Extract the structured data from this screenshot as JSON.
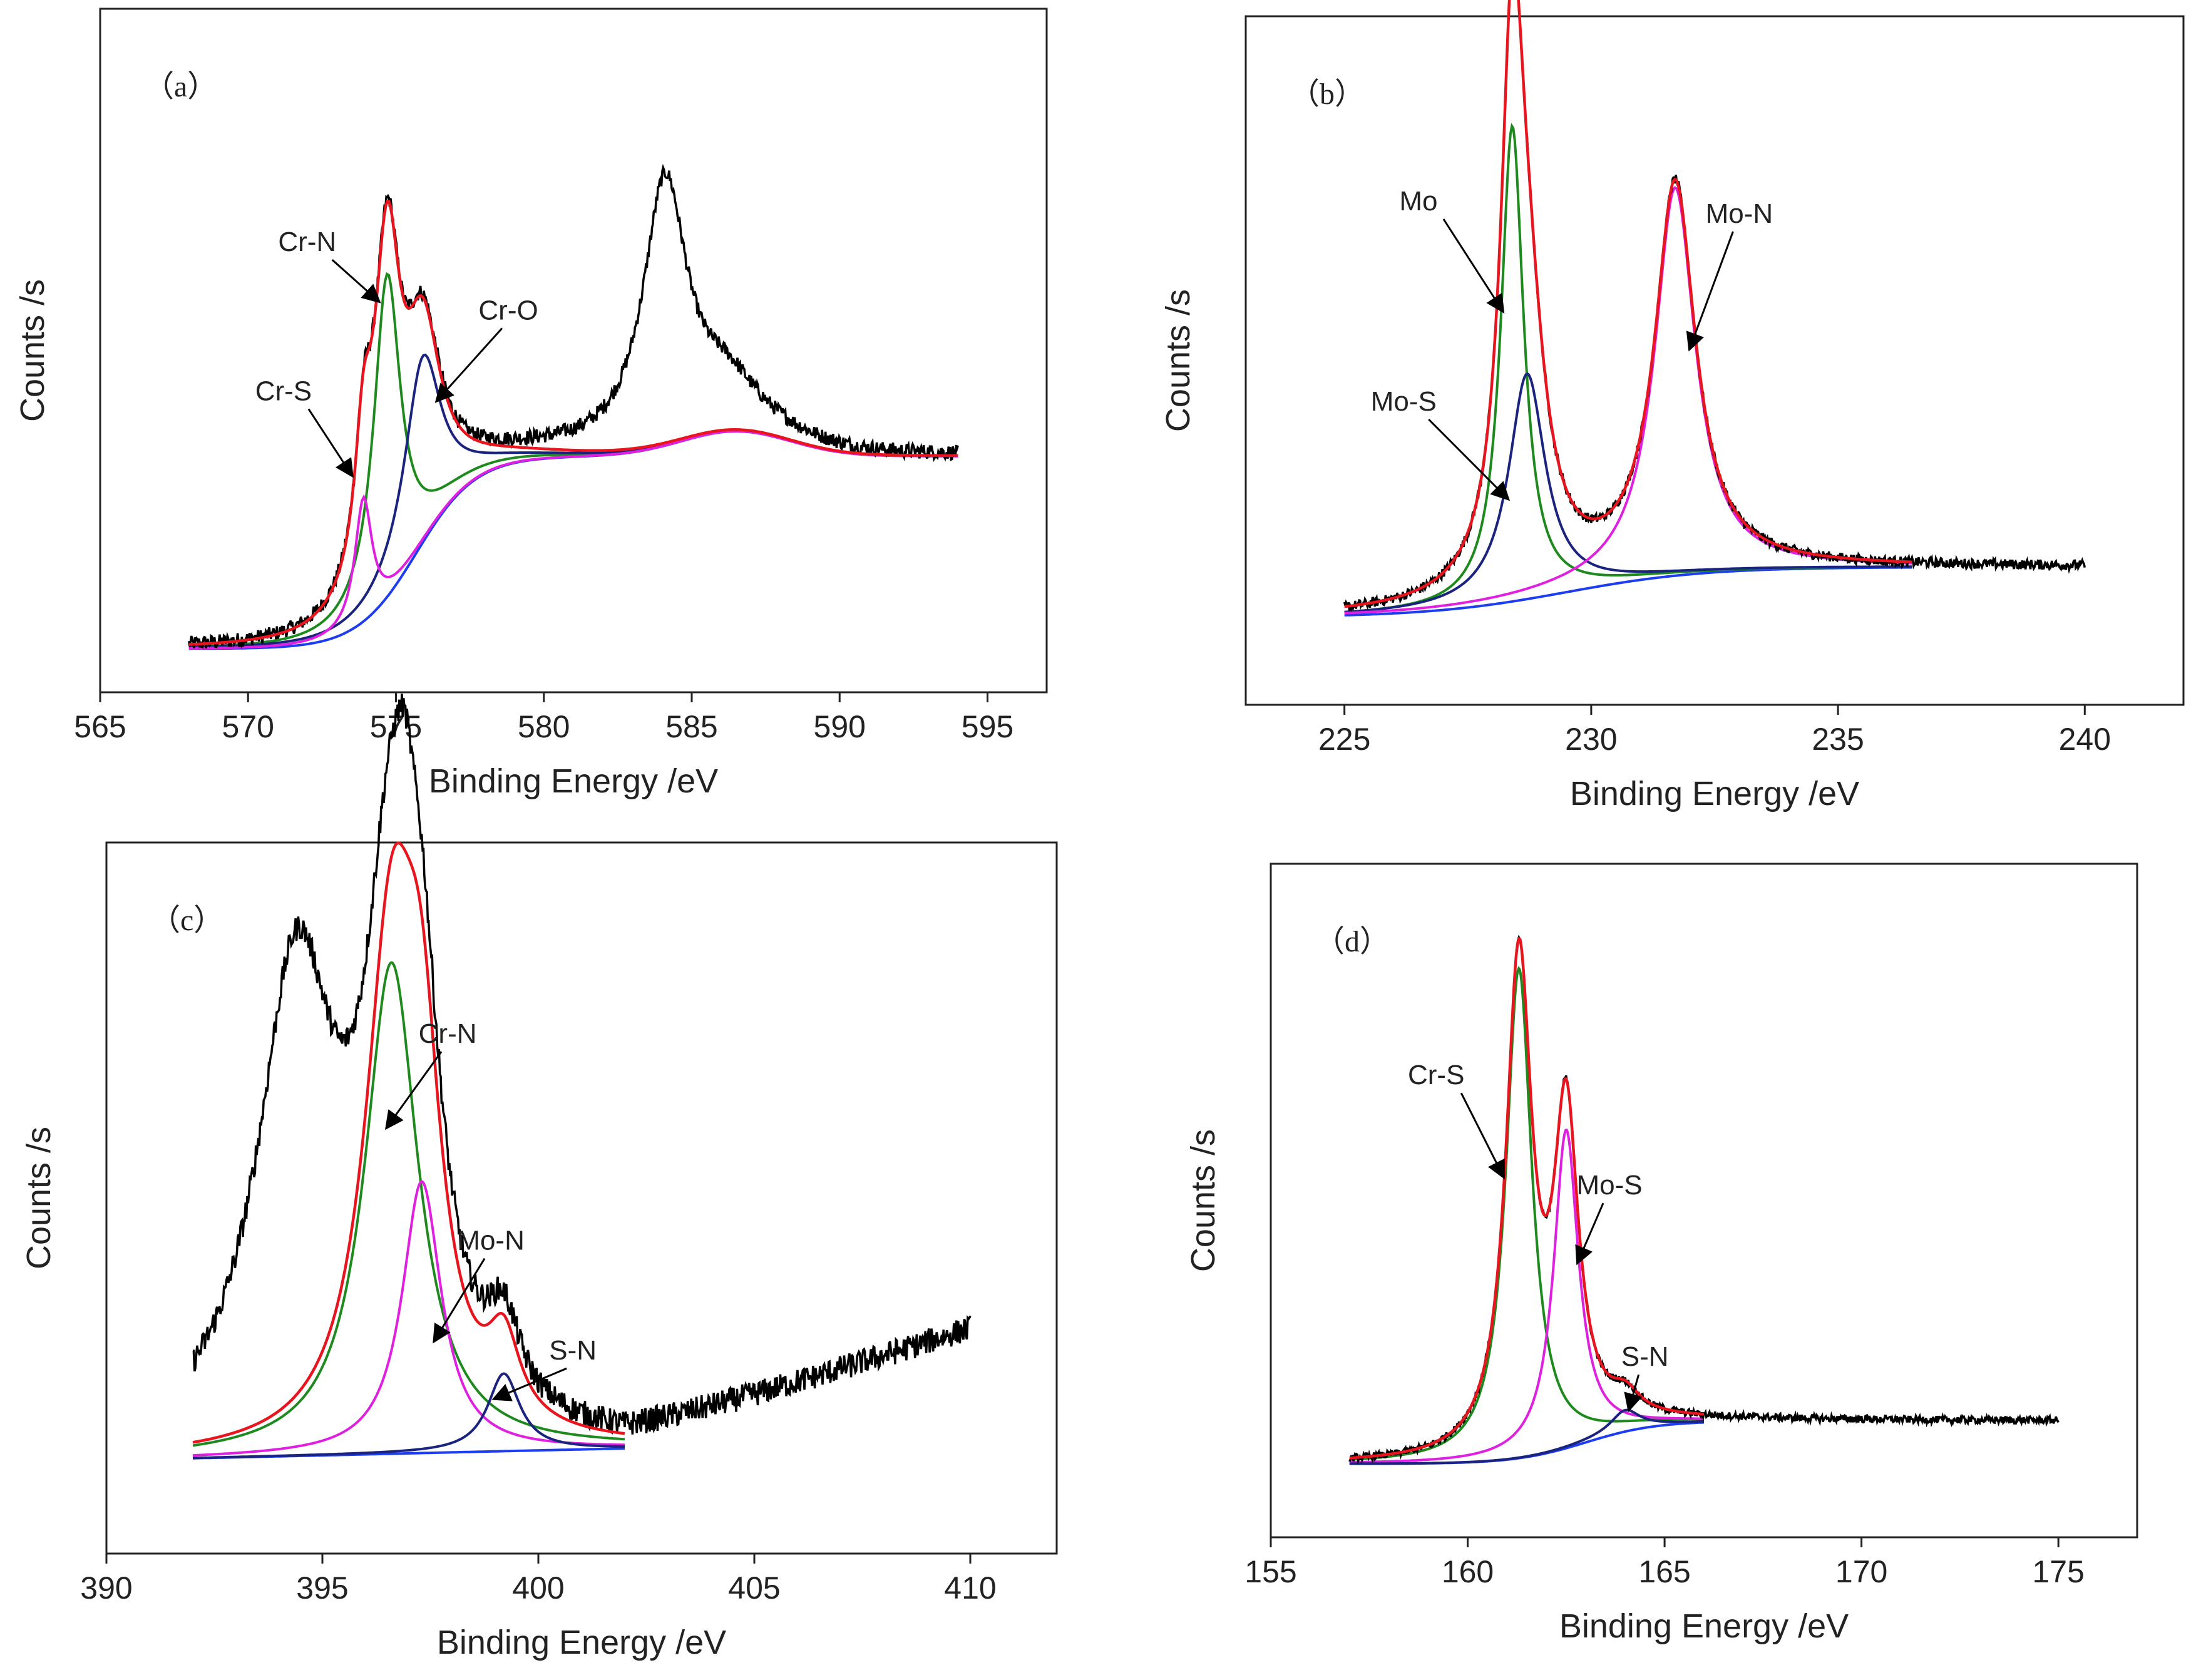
{
  "chart_data": [
    {
      "type": "line",
      "panel_label": "（a）",
      "xlabel": "Binding Energy /eV",
      "ylabel": "Counts /s",
      "xlim": [
        565,
        597
      ],
      "ylim": [
        0,
        1.1
      ],
      "xticks": [
        565,
        570,
        575,
        580,
        585,
        590,
        595
      ],
      "grid": false,
      "x_range": [
        568,
        594
      ],
      "noise": 0.012,
      "background": {
        "start": 568,
        "lo": 0.07,
        "mid": 0.38,
        "center": 575.7,
        "width": 1.0,
        "bump_height": 0.04,
        "bump_center": 586.5,
        "bump_width": 2.6,
        "tail_center": 582.5,
        "tail_width": 1.2,
        "tail_end": 0.45
      },
      "components": [
        {
          "name": "Cr-N",
          "color": "#1e8a1e",
          "center": 574.7,
          "height": 0.52,
          "width": 0.55
        },
        {
          "name": "Cr-O",
          "color": "#1a237e",
          "center": 575.9,
          "height": 0.3,
          "width": 0.75
        },
        {
          "name": "Cr-S",
          "color": "#e020e0",
          "center": 573.9,
          "height": 0.2,
          "width": 0.35
        }
      ],
      "experimental_extra": [
        {
          "center": 584.1,
          "height": 0.42,
          "width": 0.9
        },
        {
          "center": 586.2,
          "height": 0.06,
          "width": 1.2
        }
      ],
      "fit_range": [
        568,
        594
      ],
      "annotations": [
        {
          "text": "Cr-N",
          "label_x": 572.0,
          "label_y": 0.71,
          "arrow_to_x": 574.4,
          "arrow_to_y": 0.63
        },
        {
          "text": "Cr-O",
          "label_x": 578.8,
          "label_y": 0.6,
          "arrow_to_x": 576.4,
          "arrow_to_y": 0.47
        },
        {
          "text": "Cr-S",
          "label_x": 571.2,
          "label_y": 0.47,
          "arrow_to_x": 573.5,
          "arrow_to_y": 0.35
        }
      ]
    },
    {
      "type": "line",
      "panel_label": "（b）",
      "xlabel": "Binding Energy /eV",
      "ylabel": "Counts /s",
      "xlim": [
        223,
        242
      ],
      "ylim": [
        0,
        1.1
      ],
      "xticks": [
        225,
        230,
        235,
        240
      ],
      "grid": false,
      "x_range": [
        225,
        240
      ],
      "noise": 0.008,
      "background": {
        "start": 225,
        "lo": 0.14,
        "mid": 0.22,
        "center": 229.5,
        "width": 1.4,
        "bump_height": 0.0,
        "bump_center": 235,
        "bump_width": 2,
        "tail_center": 236.6,
        "tail_width": 0.3,
        "tail_end": 0.22
      },
      "components": [
        {
          "name": "Mo",
          "color": "#1e8a1e",
          "center": 228.4,
          "height": 0.76,
          "width": 0.28
        },
        {
          "name": "Mo-S",
          "color": "#1a237e",
          "center": 228.7,
          "height": 0.36,
          "width": 0.45
        },
        {
          "name": "Mo-N",
          "color": "#e020e0",
          "center": 231.7,
          "height": 0.62,
          "width": 0.5
        }
      ],
      "experimental_extra": [],
      "fit_range": [
        225,
        236.5
      ],
      "annotations": [
        {
          "text": "Mo",
          "label_x": 226.5,
          "label_y": 0.79,
          "arrow_to_x": 228.2,
          "arrow_to_y": 0.63
        },
        {
          "text": "Mo-S",
          "label_x": 226.2,
          "label_y": 0.47,
          "arrow_to_x": 228.3,
          "arrow_to_y": 0.33
        },
        {
          "text": "Mo-N",
          "label_x": 233.0,
          "label_y": 0.77,
          "arrow_to_x": 232.0,
          "arrow_to_y": 0.57
        }
      ]
    },
    {
      "type": "line",
      "panel_label": "（c）",
      "xlabel": "Binding Energy /eV",
      "ylabel": "Counts /s",
      "xlim": [
        390,
        412
      ],
      "ylim": [
        0,
        1.1
      ],
      "xticks": [
        390,
        395,
        400,
        405,
        410
      ],
      "grid": false,
      "x_range": [
        392,
        410
      ],
      "noise": 0.02,
      "background": {
        "start": 392,
        "lo": 0.13,
        "mid": 0.18,
        "center": 397,
        "width": 8.0,
        "bump_height": 0.0,
        "bump_center": 400,
        "bump_width": 2,
        "tail_center": 402,
        "tail_width": 0.3,
        "tail_end": 0.18
      },
      "linear_tail": {
        "from": 402,
        "y0": 0.19,
        "to": 410,
        "y1": 0.36
      },
      "components": [
        {
          "name": "Cr-N",
          "color": "#1e8a1e",
          "center": 396.6,
          "height": 0.76,
          "width": 0.75
        },
        {
          "name": "Mo-N",
          "color": "#e020e0",
          "center": 397.3,
          "height": 0.42,
          "width": 0.55
        },
        {
          "name": "S-N",
          "color": "#1a237e",
          "center": 399.2,
          "height": 0.12,
          "width": 0.45
        }
      ],
      "experimental_extra": [
        {
          "center": 394.4,
          "height": 0.72,
          "width": 1.1
        },
        {
          "center": 396.9,
          "height": 0.1,
          "width": 0.25
        }
      ],
      "fit_range": [
        392,
        402
      ],
      "annotations": [
        {
          "text": "Cr-N",
          "label_x": 397.9,
          "label_y": 0.79,
          "arrow_to_x": 396.5,
          "arrow_to_y": 0.66
        },
        {
          "text": "Mo-N",
          "label_x": 398.9,
          "label_y": 0.47,
          "arrow_to_x": 397.6,
          "arrow_to_y": 0.33
        },
        {
          "text": "S-N",
          "label_x": 400.8,
          "label_y": 0.3,
          "arrow_to_x": 399.0,
          "arrow_to_y": 0.24
        }
      ]
    },
    {
      "type": "line",
      "panel_label": "（d）",
      "xlabel": "Binding Energy /eV",
      "ylabel": "Counts /s",
      "xlim": [
        155,
        177
      ],
      "ylim": [
        0,
        1.1
      ],
      "xticks": [
        155,
        160,
        165,
        170,
        175
      ],
      "grid": false,
      "x_range": [
        157,
        175
      ],
      "noise": 0.006,
      "background": {
        "start": 157,
        "lo": 0.12,
        "mid": 0.19,
        "center": 163,
        "width": 0.9,
        "bump_height": 0.0,
        "bump_center": 165,
        "bump_width": 2,
        "tail_center": 166,
        "tail_width": 0.3,
        "tail_end": 0.19
      },
      "components": [
        {
          "name": "Cr-S",
          "color": "#1e8a1e",
          "center": 161.3,
          "height": 0.8,
          "width": 0.4
        },
        {
          "name": "Mo-S",
          "color": "#e020e0",
          "center": 162.5,
          "height": 0.52,
          "width": 0.38
        },
        {
          "name": "S-N",
          "color": "#1a237e",
          "center": 164.0,
          "height": 0.035,
          "width": 0.45
        }
      ],
      "experimental_extra": [],
      "fit_range": [
        157,
        166
      ],
      "annotations": [
        {
          "text": "Cr-S",
          "label_x": 159.2,
          "label_y": 0.74,
          "arrow_to_x": 160.9,
          "arrow_to_y": 0.59
        },
        {
          "text": "Mo-S",
          "label_x": 163.6,
          "label_y": 0.56,
          "arrow_to_x": 162.8,
          "arrow_to_y": 0.45
        },
        {
          "text": "S-N",
          "label_x": 164.5,
          "label_y": 0.28,
          "arrow_to_x": 164.1,
          "arrow_to_y": 0.21
        }
      ]
    }
  ],
  "colors": {
    "experimental": "#000000",
    "fit": "#e8141e",
    "background": "#1d3df0"
  }
}
